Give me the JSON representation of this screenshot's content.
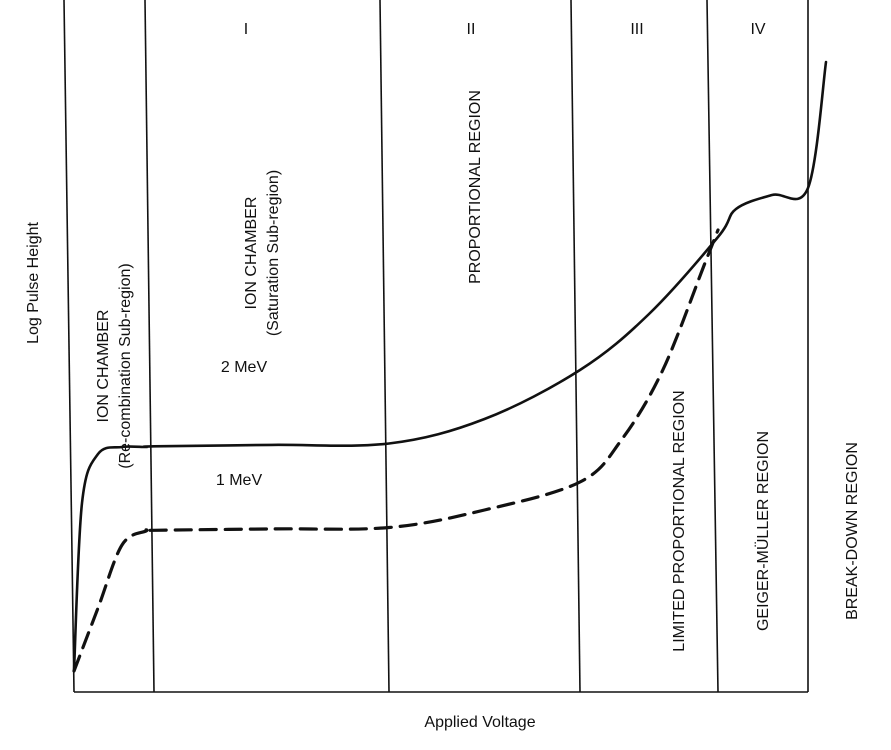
{
  "chart_data": {
    "type": "line",
    "title": "",
    "xlabel": "Applied Voltage",
    "ylabel": "Log Pulse Height",
    "x_scale": "qualitative",
    "y_scale": "log",
    "grid": false,
    "legend": "none",
    "zones": [
      {
        "roman": "",
        "label_lines": [
          "ION CHAMBER",
          "(Re-combination Sub-region)"
        ]
      },
      {
        "roman": "I",
        "label_lines": [
          "ION CHAMBER",
          "(Saturation Sub-region)"
        ]
      },
      {
        "roman": "II",
        "label_lines": [
          "PROPORTIONAL REGION"
        ]
      },
      {
        "roman": "III",
        "label_lines": [
          "LIMITED PROPORTIONAL REGION"
        ]
      },
      {
        "roman": "IV",
        "label_lines": [
          "GEIGER-MÜLLER REGION"
        ]
      },
      {
        "roman": "",
        "label_lines": [
          "BREAK-DOWN REGION"
        ]
      }
    ],
    "series": [
      {
        "name": "2 MeV",
        "style": "solid",
        "x": [
          0,
          0.1,
          0.3,
          0.6,
          0.9,
          1.0,
          1.5,
          2.0,
          2.5,
          3.0,
          3.5,
          4.0,
          4.2,
          4.6,
          5.0,
          5.2
        ],
        "y": [
          0.3,
          2.7,
          3.4,
          3.5,
          3.5,
          3.51,
          3.53,
          3.55,
          3.9,
          4.6,
          5.4,
          6.5,
          6.9,
          7.1,
          7.2,
          9.0
        ]
      },
      {
        "name": "1 MeV",
        "style": "dashed",
        "x": [
          0,
          0.3,
          0.6,
          0.9,
          1.0,
          1.5,
          2.0,
          2.5,
          3.0,
          3.3,
          3.6,
          3.9,
          4.0
        ],
        "y": [
          0.3,
          1.2,
          2.1,
          2.3,
          2.31,
          2.33,
          2.35,
          2.6,
          3.0,
          3.6,
          4.6,
          6.1,
          6.6
        ]
      }
    ]
  }
}
